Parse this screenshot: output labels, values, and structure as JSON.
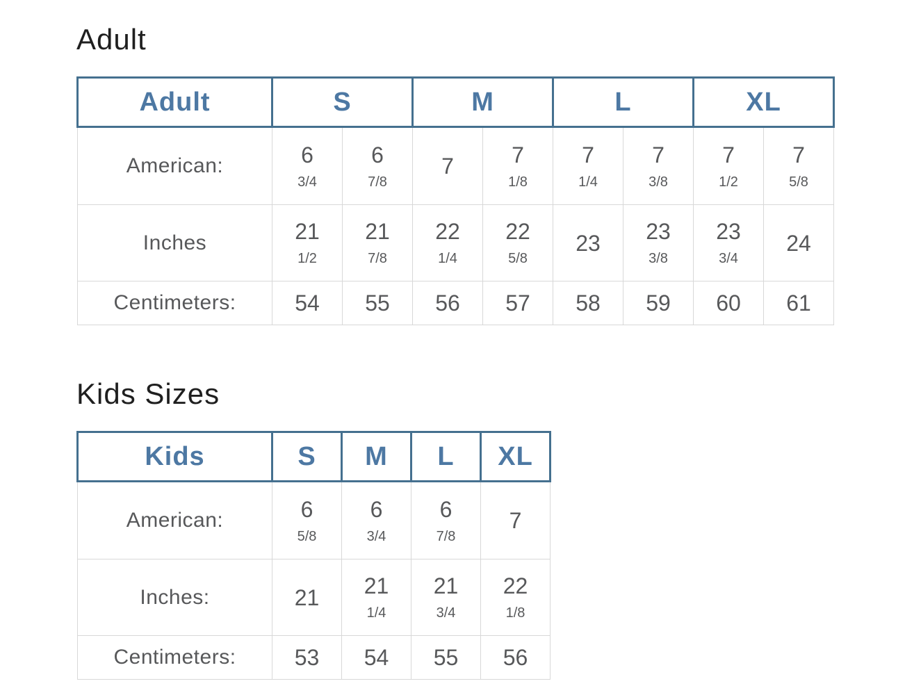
{
  "colors": {
    "heading_text": "#1f1f1f",
    "header_text": "#4d78a3",
    "header_border": "#45708f",
    "cell_text": "#57585a",
    "cell_border": "#d8d8d8"
  },
  "sections": [
    {
      "heading": "Adult",
      "table": {
        "corner_label": "Adult",
        "size_headers": [
          "S",
          "M",
          "L",
          "XL"
        ],
        "columns_per_size": 2,
        "rows": [
          {
            "label": "American:",
            "cells": [
              {
                "whole": "6",
                "frac": "3/4"
              },
              {
                "whole": "6",
                "frac": "7/8"
              },
              {
                "whole": "7",
                "frac": ""
              },
              {
                "whole": "7",
                "frac": "1/8"
              },
              {
                "whole": "7",
                "frac": "1/4"
              },
              {
                "whole": "7",
                "frac": "3/8"
              },
              {
                "whole": "7",
                "frac": "1/2"
              },
              {
                "whole": "7",
                "frac": "5/8"
              }
            ]
          },
          {
            "label": "Inches",
            "cells": [
              {
                "whole": "21",
                "frac": "1/2"
              },
              {
                "whole": "21",
                "frac": "7/8"
              },
              {
                "whole": "22",
                "frac": "1/4"
              },
              {
                "whole": "22",
                "frac": "5/8"
              },
              {
                "whole": "23",
                "frac": ""
              },
              {
                "whole": "23",
                "frac": "3/8"
              },
              {
                "whole": "23",
                "frac": "3/4"
              },
              {
                "whole": "24",
                "frac": ""
              }
            ]
          },
          {
            "label": "Centimeters:",
            "cells": [
              {
                "whole": "54",
                "frac": ""
              },
              {
                "whole": "55",
                "frac": ""
              },
              {
                "whole": "56",
                "frac": ""
              },
              {
                "whole": "57",
                "frac": ""
              },
              {
                "whole": "58",
                "frac": ""
              },
              {
                "whole": "59",
                "frac": ""
              },
              {
                "whole": "60",
                "frac": ""
              },
              {
                "whole": "61",
                "frac": ""
              }
            ]
          }
        ]
      }
    },
    {
      "heading": "Kids Sizes",
      "table": {
        "corner_label": "Kids",
        "size_headers": [
          "S",
          "M",
          "L",
          "XL"
        ],
        "columns_per_size": 1,
        "rows": [
          {
            "label": "American:",
            "cells": [
              {
                "whole": "6",
                "frac": "5/8"
              },
              {
                "whole": "6",
                "frac": "3/4"
              },
              {
                "whole": "6",
                "frac": "7/8"
              },
              {
                "whole": "7",
                "frac": ""
              }
            ]
          },
          {
            "label": "Inches:",
            "cells": [
              {
                "whole": "21",
                "frac": ""
              },
              {
                "whole": "21",
                "frac": "1/4"
              },
              {
                "whole": "21",
                "frac": "3/4"
              },
              {
                "whole": "22",
                "frac": "1/8"
              }
            ]
          },
          {
            "label": "Centimeters:",
            "cells": [
              {
                "whole": "53",
                "frac": ""
              },
              {
                "whole": "54",
                "frac": ""
              },
              {
                "whole": "55",
                "frac": ""
              },
              {
                "whole": "56",
                "frac": ""
              }
            ]
          }
        ]
      }
    }
  ]
}
